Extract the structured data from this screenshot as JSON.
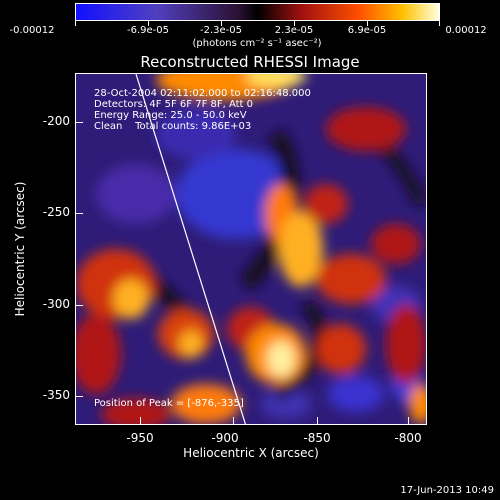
{
  "colorbar": {
    "tick_labels": [
      "-0.00012",
      "-6.9e-05",
      "-2.3e-05",
      "2.3e-05",
      "6.9e-05",
      "0.00012"
    ],
    "units": "(photons cm⁻² s⁻¹ asec⁻²)"
  },
  "plot": {
    "title": "Reconstructed RHESSI Image",
    "info_lines": [
      "28-Oct-2004 02:11:02.000 to 02:16:48.000",
      "Detectors: 4F 5F 6F 7F 8F, Att 0",
      "Energy Range: 25.0 - 50.0 keV",
      "Clean    Total counts: 9.86E+03"
    ],
    "peak_label": "Position of Peak = [-876,-335]",
    "x_axis": {
      "label": "Heliocentric X (arcsec)",
      "ticks": [
        "-950",
        "-900",
        "-850",
        "-800"
      ],
      "range": [
        -980,
        -790
      ]
    },
    "y_axis": {
      "label": "Heliocentric Y (arcsec)",
      "ticks": [
        "-200",
        "-250",
        "-300",
        "-350"
      ],
      "range": [
        -370,
        -170
      ]
    }
  },
  "footer": {
    "timestamp": "17-Jun-2013 10:49"
  },
  "colors": {
    "background": "#000000",
    "frame": "#ffffff",
    "limb_line": "#ffffff"
  }
}
